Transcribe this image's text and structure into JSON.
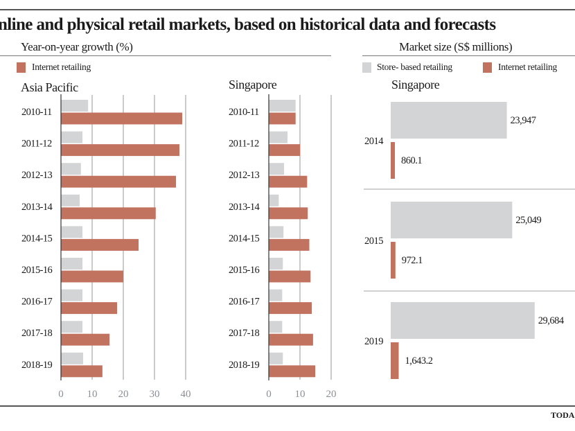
{
  "header": {
    "title": "nline and physical retail markets, based on historical data and forecasts",
    "left_subtitle": "Year-on-year growth (%)",
    "right_subtitle": "Market size (S$ millions)",
    "source": "TODA"
  },
  "legend_left": [
    {
      "label": "Internet retailing",
      "color": "#c27360"
    }
  ],
  "legend_right": [
    {
      "label": "Store- based retailing",
      "color": "#d3d4d6"
    },
    {
      "label": "Internet retailing",
      "color": "#c27360"
    }
  ],
  "colors": {
    "store": "#d3d4d6",
    "internet": "#c27360",
    "grid": "#a8a8a8"
  },
  "chart_data": [
    {
      "type": "bar",
      "orientation": "horizontal",
      "title": "Asia Pacific",
      "categories": [
        "2010-11",
        "2011-12",
        "2012-13",
        "2013-14",
        "2014-15",
        "2015-16",
        "2016-17",
        "2017-18",
        "2018-19"
      ],
      "series": [
        {
          "name": "",
          "color": "#d3d4d6",
          "values": [
            8.7,
            6.9,
            6.4,
            6.0,
            6.9,
            6.9,
            6.9,
            6.9,
            7.1
          ]
        },
        {
          "name": "Internet retailing",
          "color": "#c27360",
          "values": [
            38.9,
            38.0,
            36.9,
            30.4,
            24.9,
            20.0,
            18.0,
            15.6,
            13.3
          ]
        }
      ],
      "xlim": [
        0,
        40
      ],
      "xticks": [
        "0",
        "10",
        "20",
        "30",
        "40"
      ],
      "grid": true
    },
    {
      "type": "bar",
      "orientation": "horizontal",
      "title": "Singapore",
      "categories": [
        "2010-11",
        "2011-12",
        "2012-13",
        "2013-14",
        "2014-15",
        "2015-16",
        "2016-17",
        "2017-18",
        "2018-19"
      ],
      "series": [
        {
          "name": "",
          "color": "#d3d4d6",
          "values": [
            8.6,
            6.0,
            4.9,
            3.2,
            4.7,
            4.5,
            4.3,
            4.3,
            4.5
          ]
        },
        {
          "name": "Internet retailing",
          "color": "#c27360",
          "values": [
            8.6,
            10.0,
            12.3,
            12.5,
            13.0,
            13.4,
            13.8,
            14.2,
            14.9
          ]
        }
      ],
      "xlim": [
        0,
        20
      ],
      "xticks": [
        "0",
        "10",
        "20"
      ],
      "grid": true
    },
    {
      "type": "bar",
      "orientation": "horizontal",
      "title": "Singapore",
      "categories": [
        "2014",
        "2015",
        "2019"
      ],
      "series": [
        {
          "name": "Store- based retailing",
          "color": "#d3d4d6",
          "values": [
            23947,
            25049,
            29684
          ],
          "labels": [
            "23,947",
            "25,049",
            "29,684"
          ]
        },
        {
          "name": "Internet retailing",
          "color": "#c27360",
          "values": [
            860.1,
            972.1,
            1643.2
          ],
          "labels": [
            "860.1",
            "972.1",
            "1,643.2"
          ]
        }
      ],
      "grid": false
    }
  ]
}
